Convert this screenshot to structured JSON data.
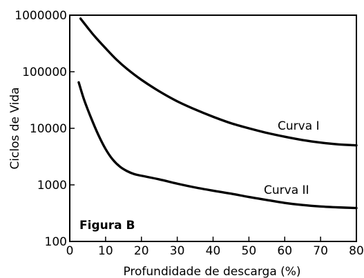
{
  "chart_data": {
    "type": "line",
    "xlabel": "Profundidade de descarga (%)",
    "ylabel": "Ciclos de Vida",
    "xlim": [
      0,
      80
    ],
    "ylim": [
      100,
      1000000
    ],
    "yscale": "log",
    "grid": false,
    "x_ticks": [
      "0",
      "10",
      "20",
      "30",
      "40",
      "50",
      "60",
      "70",
      "80"
    ],
    "y_ticks": [
      "100",
      "1000",
      "10000",
      "100000",
      "1000000"
    ],
    "annotation": "Figura B",
    "series": [
      {
        "name": "Curva I",
        "x": [
          3,
          5,
          7,
          10,
          13,
          16,
          20,
          25,
          30,
          35,
          40,
          45,
          50,
          55,
          60,
          65,
          70,
          75,
          80
        ],
        "y": [
          870000,
          600000,
          420000,
          260000,
          165000,
          112000,
          72000,
          45000,
          30000,
          21500,
          16000,
          12300,
          10000,
          8300,
          7100,
          6200,
          5600,
          5200,
          5000
        ]
      },
      {
        "name": "Curva II",
        "x": [
          2.5,
          4,
          6,
          8,
          10,
          12,
          14,
          16,
          18,
          20,
          25,
          30,
          35,
          40,
          45,
          50,
          55,
          60,
          65,
          70,
          75,
          80
        ],
        "y": [
          65000,
          32000,
          15000,
          7600,
          4300,
          2800,
          2100,
          1750,
          1550,
          1450,
          1250,
          1050,
          900,
          790,
          700,
          610,
          540,
          480,
          440,
          415,
          400,
          390
        ]
      }
    ],
    "curve_labels": [
      "Curva I",
      "Curva II"
    ]
  }
}
